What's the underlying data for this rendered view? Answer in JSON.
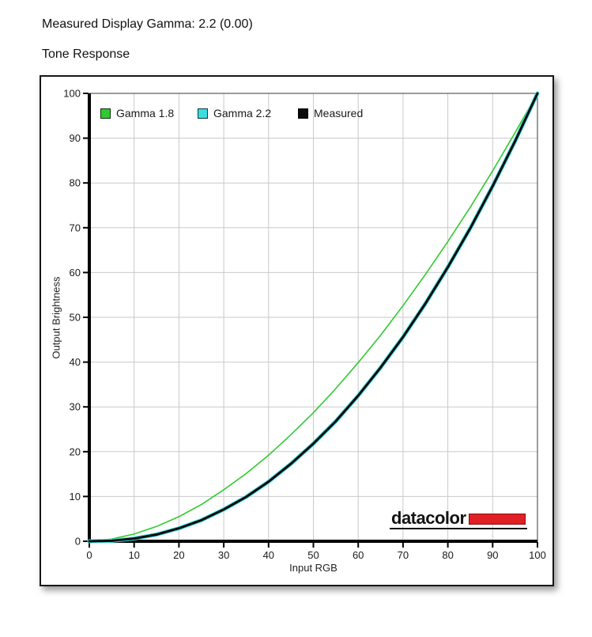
{
  "header": {
    "measured_gamma": "Measured Display Gamma: 2.2 (0.00)",
    "section_title": "Tone Response"
  },
  "chart_data": {
    "type": "line",
    "title": "Tone Response",
    "xlabel": "Input RGB",
    "ylabel": "Output Brightness",
    "xlim": [
      0,
      100
    ],
    "ylim": [
      0,
      100
    ],
    "x_ticks": [
      0,
      10,
      20,
      30,
      40,
      50,
      60,
      70,
      80,
      90,
      100
    ],
    "y_ticks": [
      0,
      10,
      20,
      30,
      40,
      50,
      60,
      70,
      80,
      90,
      100
    ],
    "grid": true,
    "legend_position": "inside-top-left",
    "x": [
      0,
      5,
      10,
      15,
      20,
      25,
      30,
      35,
      40,
      45,
      50,
      55,
      60,
      65,
      70,
      75,
      80,
      85,
      90,
      95,
      100
    ],
    "series": [
      {
        "name": "Gamma 1.8",
        "color": "#2fca2f",
        "line_width": 1.6,
        "values": [
          0,
          0.5,
          1.6,
          3.3,
          5.5,
          8.2,
          11.5,
          15.1,
          19.2,
          23.8,
          28.7,
          34.1,
          39.9,
          46.0,
          52.6,
          59.6,
          66.9,
          74.6,
          82.7,
          91.2,
          100
        ]
      },
      {
        "name": "Gamma 2.2",
        "color": "#3adde2",
        "line_width": 5,
        "values": [
          0,
          0.1,
          0.6,
          1.5,
          2.9,
          4.7,
          7.1,
          9.9,
          13.3,
          17.3,
          21.8,
          26.8,
          32.5,
          38.8,
          45.6,
          53.1,
          61.2,
          69.9,
          79.3,
          89.3,
          100
        ]
      },
      {
        "name": "Measured",
        "color": "#0a0a0a",
        "line_width": 3,
        "values": [
          0,
          0.1,
          0.6,
          1.5,
          2.9,
          4.7,
          7.1,
          9.9,
          13.3,
          17.3,
          21.8,
          26.8,
          32.5,
          38.8,
          45.6,
          53.1,
          61.2,
          69.9,
          79.3,
          89.3,
          100
        ]
      }
    ],
    "style": {
      "grid_color": "#c9c9c9",
      "plot_border_color": "#3a3a3a",
      "axis_color": "#000000",
      "tick_label_color": "#1a1a1a"
    },
    "branding": {
      "logo_text": "datacolor",
      "logo_bar_color": "#e02025"
    }
  }
}
